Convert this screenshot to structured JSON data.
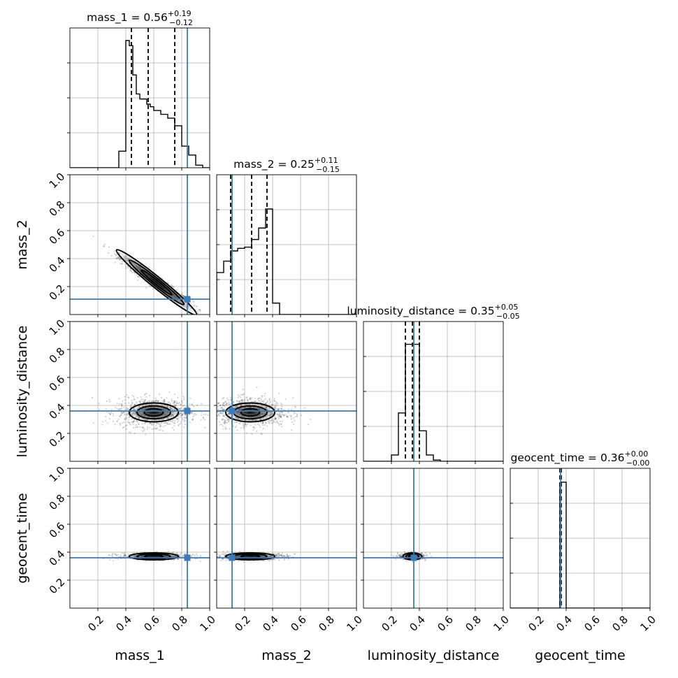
{
  "chart_data": {
    "type": "corner",
    "parameters": [
      "mass_1",
      "mass_2",
      "luminosity_distance",
      "geocent_time"
    ],
    "tick_labels": [
      "0.2",
      "0.4",
      "0.6",
      "0.8",
      "1.0"
    ],
    "range": [
      0,
      1
    ],
    "grid": true,
    "truth_color": "#3d7ab8",
    "truths": {
      "mass_1": 0.84,
      "mass_2": 0.11,
      "luminosity_distance": 0.36,
      "geocent_time": 0.36
    },
    "titles": {
      "mass_1": {
        "prefix": "mass_1 = 0.56",
        "sup": "+0.19",
        "sub": "−0.12"
      },
      "mass_2": {
        "prefix": "mass_2 = 0.25",
        "sup": "+0.11",
        "sub": "−0.15"
      },
      "luminosity_distance": {
        "prefix": "luminosity_distance = 0.35",
        "sup": "+0.05",
        "sub": "−0.05"
      },
      "geocent_time": {
        "prefix": "geocent_time = 0.36",
        "sup": "+0.00",
        "sub": "−0.00"
      }
    },
    "quantiles": {
      "mass_1": [
        0.44,
        0.56,
        0.75
      ],
      "mass_2": [
        0.1,
        0.25,
        0.36
      ],
      "luminosity_distance": [
        0.3,
        0.35,
        0.4
      ],
      "geocent_time": [
        0.355,
        0.36,
        0.365
      ]
    },
    "histograms": {
      "mass_1": {
        "edges": [
          0.35,
          0.4,
          0.425,
          0.45,
          0.475,
          0.5,
          0.525,
          0.55,
          0.575,
          0.6,
          0.65,
          0.7,
          0.75,
          0.8,
          0.85,
          0.9,
          0.95
        ],
        "values": [
          0.13,
          1.0,
          0.96,
          0.73,
          0.58,
          0.54,
          0.54,
          0.5,
          0.48,
          0.45,
          0.42,
          0.39,
          0.33,
          0.17,
          0.1,
          0.02
        ]
      },
      "mass_2": {
        "edges": [
          0.0,
          0.05,
          0.1,
          0.15,
          0.2,
          0.25,
          0.3,
          0.35,
          0.4,
          0.45,
          0.5,
          1.0
        ],
        "values": [
          0.33,
          0.42,
          0.5,
          0.52,
          0.53,
          0.59,
          0.68,
          0.83,
          0.09,
          0.0,
          0.0
        ]
      },
      "luminosity_distance": {
        "edges": [
          0.2,
          0.25,
          0.3,
          0.35,
          0.4,
          0.45,
          0.5,
          0.55
        ],
        "values": [
          0.05,
          0.38,
          0.92,
          0.92,
          0.24,
          0.05,
          0.01
        ]
      },
      "geocent_time": {
        "edges": [
          0.355,
          0.36,
          0.37,
          0.38,
          0.4
        ],
        "values": [
          0.98,
          0.99,
          0.99,
          0.99
        ]
      }
    }
  }
}
